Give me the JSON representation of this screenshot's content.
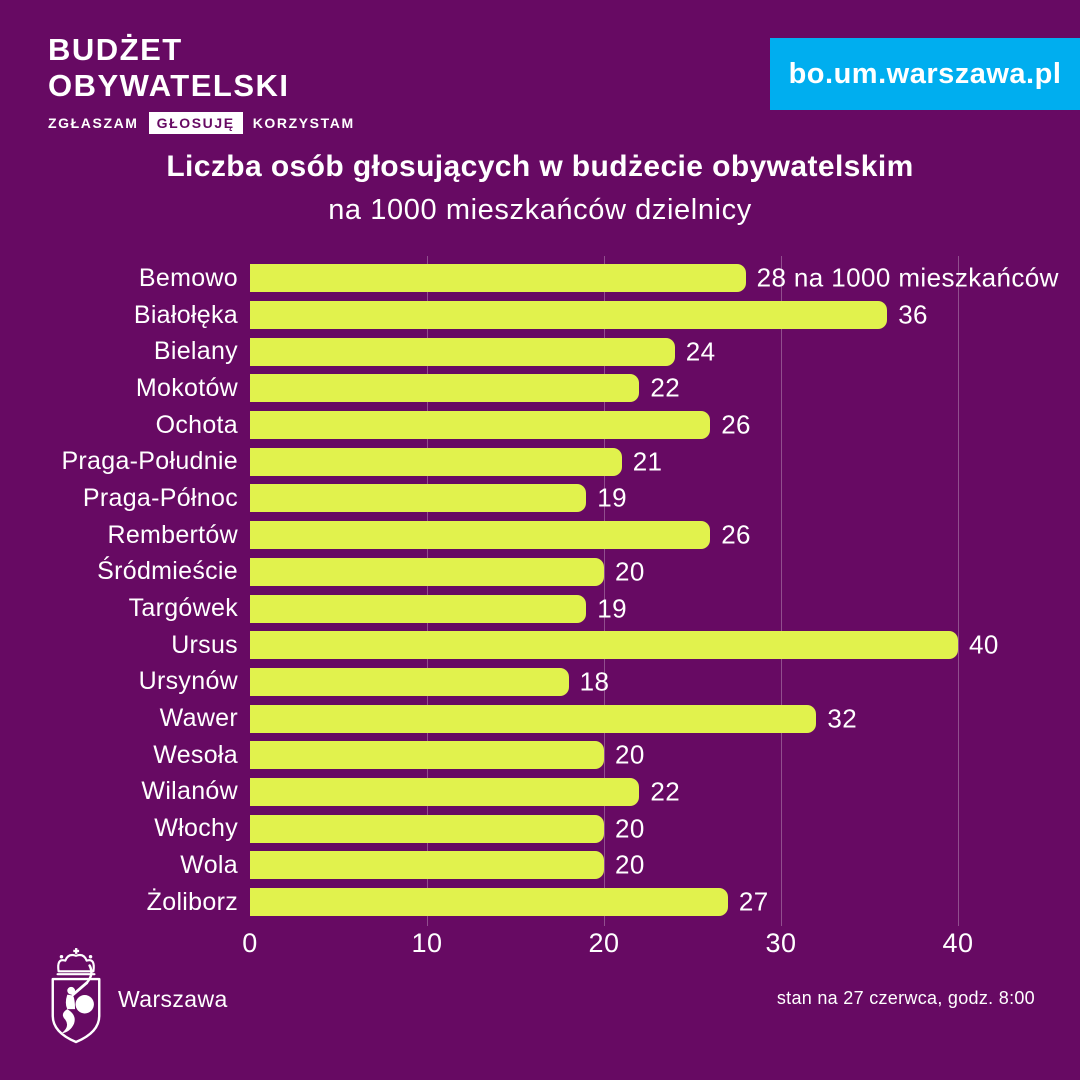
{
  "header": {
    "logo_line1": "BUDŻET",
    "logo_line2": "OBYWATELSKI",
    "tagline": [
      "ZGŁASZAM",
      "GŁOSUJĘ",
      "KORZYSTAM"
    ],
    "url": "bo.um.warszawa.pl"
  },
  "title": {
    "line1": "Liczba osób głosujących w budżecie obywatelskim",
    "line2": "na 1000 mieszkańców dzielnicy"
  },
  "chart_data": {
    "type": "bar",
    "orientation": "horizontal",
    "title": "Liczba osób głosujących w budżecie obywatelskim na 1000 mieszkańców dzielnicy",
    "categories": [
      "Bemowo",
      "Białołęka",
      "Bielany",
      "Mokotów",
      "Ochota",
      "Praga-Południe",
      "Praga-Północ",
      "Rembertów",
      "Śródmieście",
      "Targówek",
      "Ursus",
      "Ursynów",
      "Wawer",
      "Wesoła",
      "Wilanów",
      "Włochy",
      "Wola",
      "Żoliborz"
    ],
    "values": [
      28,
      36,
      24,
      22,
      26,
      21,
      19,
      26,
      20,
      19,
      40,
      18,
      32,
      20,
      22,
      20,
      20,
      27
    ],
    "first_value_annotation": "na 1000 mieszkańców",
    "xticks": [
      0,
      10,
      20,
      30,
      40
    ],
    "xlim": [
      0,
      40
    ],
    "grid": true,
    "legend": "none",
    "bar_color": "#E1F24D",
    "background_color": "#670A63"
  },
  "footer": {
    "city_label": "Warszawa",
    "status": "stan na 27 czerwca, godz. 8:00"
  },
  "colors": {
    "background": "#670A63",
    "bar": "#E1F24D",
    "banner": "#00AEEF",
    "text": "#FFFFFF",
    "gridline": "rgba(255,255,255,0.28)"
  }
}
